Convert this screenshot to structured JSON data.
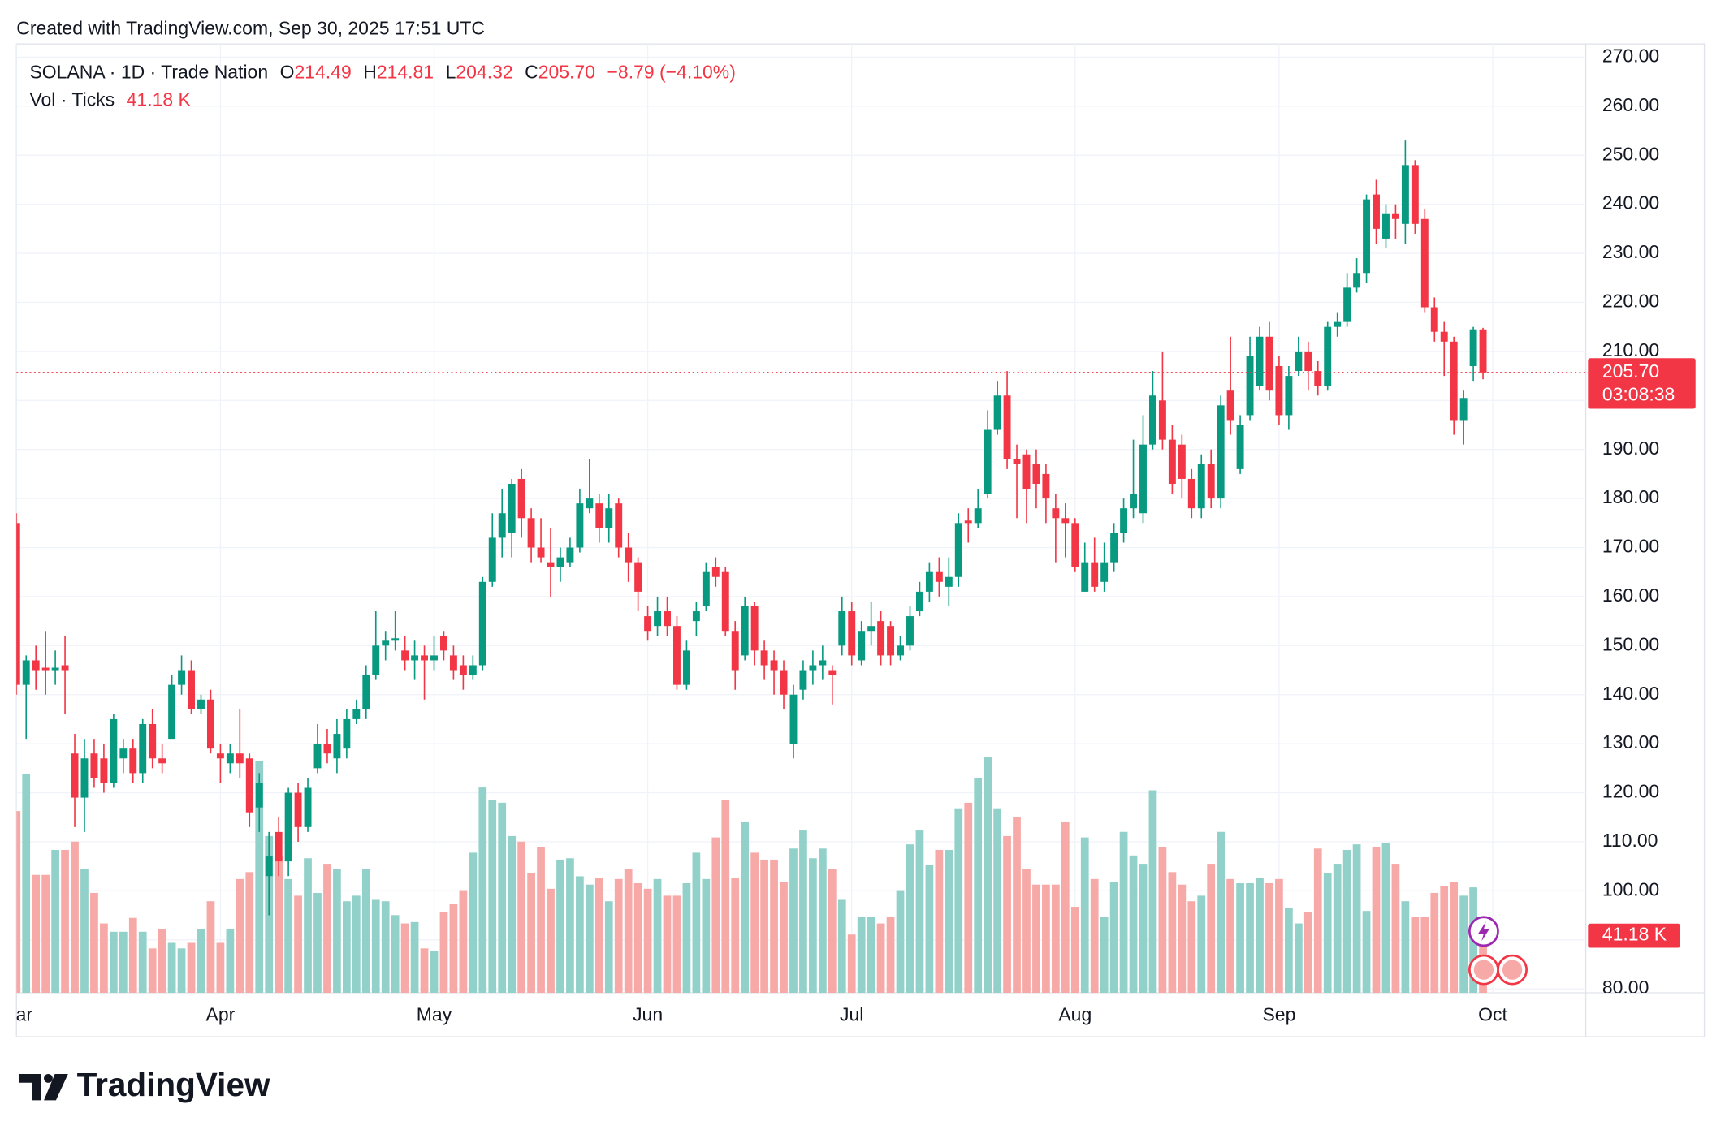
{
  "header": "Created with TradingView.com, Sep 30, 2025 17:51 UTC",
  "footer": "TradingView",
  "chart_data": {
    "type": "candlestick",
    "title": "SOLANA · 1D · Trade Nation",
    "legend_labels": [
      "O",
      "H",
      "L",
      "C"
    ],
    "change": "−8.79 (−4.10%)",
    "countdown": "03:08:38",
    "colors": {
      "up": "#089981",
      "down": "#f23645",
      "volume_up": "#92d1c9",
      "volume_down": "#f7a9a7"
    },
    "grid": true,
    "ylim": [
      79.2,
      272.7
    ],
    "yticks": [
      {
        "value": 80,
        "label": "80.00"
      },
      {
        "value": 90,
        "label": "90.00"
      },
      {
        "value": 100,
        "label": "100.00"
      },
      {
        "value": 110,
        "label": "110.00"
      },
      {
        "value": 120,
        "label": "120.00"
      },
      {
        "value": 130,
        "label": "130.00"
      },
      {
        "value": 140,
        "label": "140.00"
      },
      {
        "value": 150,
        "label": "150.00"
      },
      {
        "value": 160,
        "label": "160.00"
      },
      {
        "value": 170,
        "label": "170.00"
      },
      {
        "value": 180,
        "label": "180.00"
      },
      {
        "value": 190,
        "label": "190.00"
      },
      {
        "value": 200,
        "label": "200.00"
      },
      {
        "value": 210,
        "label": "210.00"
      },
      {
        "value": 220,
        "label": "220.00"
      },
      {
        "value": 230,
        "label": "230.00"
      },
      {
        "value": 240,
        "label": "240.00"
      },
      {
        "value": 250,
        "label": "250.00"
      },
      {
        "value": 260,
        "label": "260.00"
      },
      {
        "value": 270,
        "label": "270.00"
      }
    ],
    "categories": [
      "Mar",
      null,
      null,
      null,
      null,
      null,
      null,
      null,
      null,
      null,
      null,
      null,
      null,
      null,
      null,
      null,
      null,
      null,
      null,
      null,
      null,
      "Apr",
      null,
      null,
      null,
      null,
      null,
      null,
      null,
      null,
      null,
      null,
      null,
      null,
      null,
      null,
      null,
      null,
      null,
      null,
      null,
      null,
      null,
      "May",
      null,
      null,
      null,
      null,
      null,
      null,
      null,
      null,
      null,
      null,
      null,
      null,
      null,
      null,
      null,
      null,
      null,
      null,
      null,
      null,
      null,
      "Jun",
      null,
      null,
      null,
      null,
      null,
      null,
      null,
      null,
      null,
      null,
      null,
      null,
      null,
      null,
      null,
      null,
      null,
      null,
      null,
      null,
      "Jul",
      null,
      null,
      null,
      null,
      null,
      null,
      null,
      null,
      null,
      null,
      null,
      null,
      null,
      null,
      null,
      null,
      null,
      null,
      null,
      null,
      null,
      null,
      "Aug",
      null,
      null,
      null,
      null,
      null,
      null,
      null,
      null,
      null,
      null,
      null,
      null,
      null,
      null,
      null,
      null,
      null,
      null,
      null,
      null,
      "Sep",
      null,
      null,
      null,
      null,
      null,
      null,
      null,
      null,
      null,
      null,
      null,
      null,
      null,
      null,
      null,
      null,
      null,
      null,
      null,
      null,
      null,
      "Oct"
    ],
    "open": [
      175,
      142,
      147,
      145.5,
      145,
      146,
      128,
      119,
      128,
      127,
      122,
      127,
      129,
      124,
      134,
      127,
      131,
      142,
      145,
      137,
      139,
      128,
      126,
      128,
      127,
      117,
      103,
      112,
      106,
      120,
      113,
      125,
      130,
      127,
      129,
      135,
      137,
      144,
      150,
      151,
      149,
      147,
      148,
      147,
      152,
      148,
      146,
      144,
      146,
      163,
      172,
      173,
      184,
      176,
      170,
      167,
      166,
      167,
      170,
      178,
      179,
      174,
      179,
      170,
      167,
      156,
      154,
      157,
      154,
      142,
      155,
      158,
      166,
      165,
      153,
      148,
      158,
      149,
      147,
      145,
      130,
      141,
      145,
      146,
      145,
      150,
      157,
      147,
      153,
      155,
      154,
      148,
      150,
      157,
      161,
      165,
      162,
      164,
      175.5,
      175,
      181,
      194,
      201,
      188,
      189,
      187,
      185,
      178,
      176,
      175,
      161,
      167,
      163,
      167,
      173,
      178,
      177,
      191,
      200,
      192,
      191,
      184,
      178,
      187,
      180,
      202,
      186,
      197,
      203,
      213,
      207,
      197,
      206,
      210,
      206,
      203,
      215,
      216,
      223,
      226,
      242,
      233,
      238,
      236,
      248,
      237,
      219,
      214,
      212,
      196,
      207,
      214.49,
      null
    ],
    "high": [
      177,
      148,
      150,
      153,
      149,
      152,
      132,
      131,
      131,
      130,
      136,
      131,
      131,
      135,
      137,
      130,
      144,
      148,
      147,
      140,
      141,
      130,
      130,
      137,
      128,
      124,
      112,
      115,
      121,
      122,
      123,
      134,
      133,
      135,
      137,
      139,
      146,
      157,
      153,
      157,
      152,
      151,
      150,
      152,
      153,
      150,
      148,
      148,
      164,
      177,
      182,
      184,
      186,
      178,
      176,
      174,
      170,
      172,
      182,
      188,
      181,
      181,
      180,
      173,
      168,
      158,
      160,
      160,
      156,
      151,
      159,
      167,
      168,
      166,
      155,
      160,
      159,
      151,
      149,
      147,
      142,
      147,
      149,
      150,
      146,
      160,
      159,
      155,
      159,
      157,
      155,
      152,
      158,
      163,
      167,
      168,
      168,
      177,
      178,
      182,
      198,
      204,
      206,
      191,
      190,
      190,
      187,
      181,
      179,
      176,
      171,
      172,
      171,
      175,
      180,
      192,
      197,
      206,
      210,
      195,
      193,
      186,
      189,
      190,
      201,
      213,
      197,
      213,
      215,
      216,
      209,
      207,
      213,
      212,
      208,
      216,
      218,
      226,
      229,
      242,
      245,
      240,
      240,
      253,
      249,
      239,
      221,
      216,
      213,
      202,
      215,
      214.81,
      null
    ],
    "low": [
      140,
      131,
      141,
      140,
      142,
      136,
      113,
      112,
      121,
      120,
      121,
      124,
      122,
      122,
      125,
      124,
      131,
      140,
      136,
      136,
      128,
      122,
      124,
      123,
      113,
      112,
      95,
      103,
      103,
      110,
      112,
      124,
      126,
      124,
      127,
      134,
      135,
      143,
      147,
      149,
      145,
      143,
      139,
      145,
      147,
      143,
      141,
      143,
      145,
      162,
      168,
      168,
      172,
      167,
      167,
      160,
      163,
      166,
      169,
      177,
      171,
      171,
      168,
      163,
      157,
      151,
      152,
      152,
      141,
      141,
      152,
      157,
      162,
      152,
      141,
      147,
      146,
      143,
      140,
      137,
      127,
      139,
      142,
      143,
      138,
      148,
      146,
      146,
      150,
      146,
      146,
      147,
      149,
      156,
      159,
      160,
      158,
      162,
      171,
      174,
      180,
      193,
      186,
      176,
      175,
      178,
      175,
      167,
      168,
      165,
      161,
      161,
      161,
      165,
      171,
      176,
      175,
      190,
      190,
      181,
      180,
      176,
      176,
      178,
      178,
      193,
      185,
      196,
      202,
      200,
      195,
      194,
      205,
      202,
      201,
      202,
      213,
      215,
      222,
      224,
      232,
      231,
      233,
      232,
      234,
      218,
      212,
      205,
      193,
      191,
      204,
      204.32,
      null
    ],
    "close": [
      142,
      147,
      145,
      145,
      145.5,
      145,
      119,
      127,
      123,
      122,
      135,
      129,
      124,
      134,
      127,
      126,
      142,
      145,
      137,
      139,
      129,
      127,
      128,
      126,
      116,
      122,
      107,
      106,
      120,
      113,
      121,
      130,
      128,
      132,
      135,
      137,
      144,
      150,
      151,
      151.5,
      147,
      148,
      147,
      148,
      149,
      145,
      144,
      146,
      163,
      172,
      177,
      183,
      176,
      170,
      168,
      166,
      168,
      170,
      179,
      180,
      174,
      178,
      170,
      167,
      161,
      153,
      157,
      154,
      142,
      149,
      157,
      165,
      164,
      153,
      145,
      158,
      149,
      146,
      145,
      140,
      140,
      145,
      146,
      147,
      144,
      157,
      148,
      153,
      154,
      148,
      148,
      150,
      156,
      161,
      165,
      163,
      164,
      175,
      175,
      178,
      194,
      201,
      188,
      187,
      182,
      183,
      180,
      176,
      175,
      166,
      167,
      162,
      167,
      173,
      178,
      181,
      191,
      201,
      192,
      183,
      184,
      178,
      187,
      180,
      199,
      196,
      195,
      209,
      213,
      202,
      197,
      205,
      210,
      206,
      203,
      215,
      216,
      223,
      226,
      241,
      235,
      238,
      237,
      248,
      236,
      219,
      214,
      212,
      196,
      200.5,
      214.5,
      205.7,
      null
    ],
    "close_labels": [
      null,
      null,
      null,
      null,
      null,
      null,
      null,
      null,
      null,
      null,
      null,
      null,
      null,
      null,
      null,
      null,
      null,
      null,
      null,
      null,
      null,
      null,
      null,
      null,
      null,
      null,
      null,
      null,
      null,
      null,
      null,
      null,
      null,
      null,
      null,
      null,
      null,
      null,
      null,
      null,
      null,
      null,
      null,
      null,
      null,
      null,
      null,
      null,
      null,
      null,
      null,
      null,
      null,
      null,
      null,
      null,
      null,
      null,
      null,
      null,
      null,
      null,
      null,
      null,
      null,
      null,
      null,
      null,
      null,
      null,
      null,
      null,
      null,
      null,
      null,
      null,
      null,
      null,
      null,
      null,
      null,
      null,
      null,
      null,
      null,
      null,
      null,
      null,
      null,
      null,
      null,
      null,
      null,
      null,
      null,
      null,
      null,
      null,
      null,
      null,
      null,
      null,
      null,
      null,
      null,
      null,
      null,
      null,
      null,
      null,
      null,
      null,
      null,
      null,
      null,
      null,
      null,
      null,
      null,
      null,
      null,
      null,
      null,
      null,
      null,
      null,
      null,
      null,
      null,
      null,
      null,
      null,
      null,
      null,
      null,
      null,
      null,
      null,
      null,
      null,
      null,
      null,
      null,
      null,
      null,
      null,
      null,
      null,
      null,
      null,
      null,
      "205.70",
      null
    ],
    "volume": {
      "name": "Vol · Ticks",
      "values": [
        131,
        158,
        85,
        85,
        103,
        103,
        109,
        89,
        72,
        50,
        44,
        44,
        54,
        44,
        32,
        46,
        36,
        32,
        36,
        46,
        66,
        36,
        46,
        82,
        87,
        167,
        113,
        99,
        82,
        70,
        97,
        72,
        93,
        89,
        66,
        70,
        89,
        67,
        66,
        56,
        50,
        51,
        32,
        30,
        58,
        64,
        74,
        101,
        148,
        139,
        137,
        113,
        109,
        86,
        105,
        75,
        96,
        97,
        84,
        78,
        83,
        66,
        82,
        89,
        79,
        75,
        82,
        70,
        70,
        79,
        101,
        82,
        112,
        139,
        83,
        123,
        101,
        96,
        96,
        80,
        104,
        117,
        97,
        104,
        89,
        67,
        42,
        55,
        55,
        50,
        55,
        74,
        107,
        117,
        92,
        103,
        103,
        133,
        137,
        155,
        170,
        133,
        113,
        127,
        89,
        78,
        78,
        78,
        123,
        62,
        112,
        82,
        55,
        80,
        116,
        99,
        93,
        146,
        105,
        87,
        78,
        66,
        70,
        93,
        116,
        82,
        79,
        79,
        83,
        79,
        82,
        61,
        50,
        58,
        104,
        86,
        93,
        103,
        107,
        59,
        105,
        108,
        93,
        66,
        55,
        55,
        72,
        77,
        80,
        70,
        76,
        41.18,
        null
      ],
      "value_labels": [
        null,
        null,
        null,
        null,
        null,
        null,
        null,
        null,
        null,
        null,
        null,
        null,
        null,
        null,
        null,
        null,
        null,
        null,
        null,
        null,
        null,
        null,
        null,
        null,
        null,
        null,
        null,
        null,
        null,
        null,
        null,
        null,
        null,
        null,
        null,
        null,
        null,
        null,
        null,
        null,
        null,
        null,
        null,
        null,
        null,
        null,
        null,
        null,
        null,
        null,
        null,
        null,
        null,
        null,
        null,
        null,
        null,
        null,
        null,
        null,
        null,
        null,
        null,
        null,
        null,
        null,
        null,
        null,
        null,
        null,
        null,
        null,
        null,
        null,
        null,
        null,
        null,
        null,
        null,
        null,
        null,
        null,
        null,
        null,
        null,
        null,
        null,
        null,
        null,
        null,
        null,
        null,
        null,
        null,
        null,
        null,
        null,
        null,
        null,
        null,
        null,
        null,
        null,
        null,
        null,
        null,
        null,
        null,
        null,
        null,
        null,
        null,
        null,
        null,
        null,
        null,
        null,
        null,
        null,
        null,
        null,
        null,
        null,
        null,
        null,
        null,
        null,
        null,
        null,
        null,
        null,
        null,
        null,
        null,
        null,
        null,
        null,
        null,
        null,
        null,
        null,
        null,
        null,
        null,
        null,
        null,
        null,
        null,
        null,
        null,
        null,
        "41.18 K",
        null
      ]
    }
  }
}
